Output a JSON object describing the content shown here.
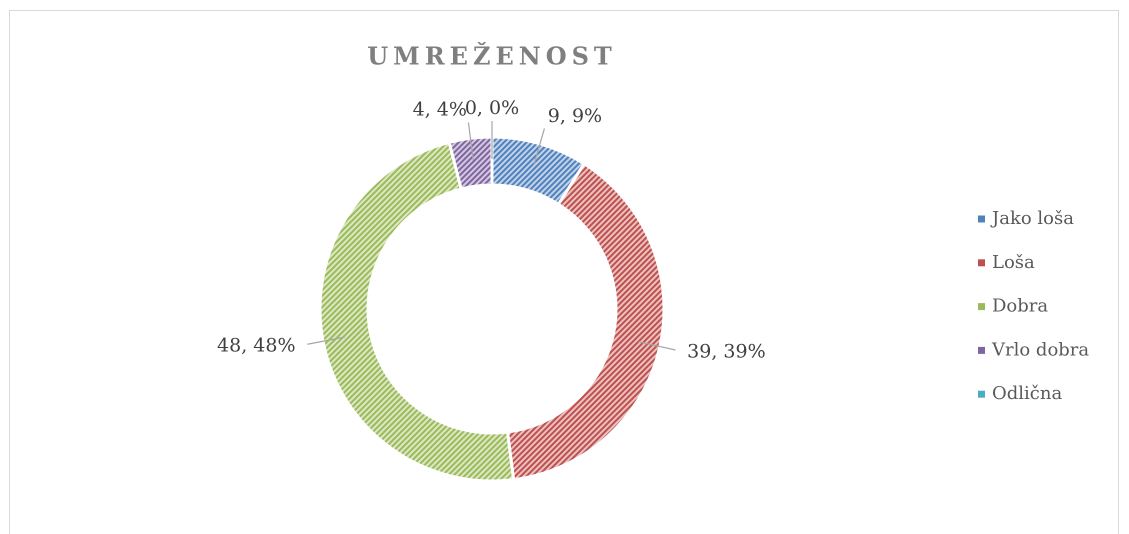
{
  "chart_data": {
    "type": "doughnut",
    "title": "UMREŽENOST",
    "categories": [
      "Jako loša",
      "Loša",
      "Dobra",
      "Vrlo dobra",
      "Odlična"
    ],
    "values": [
      9,
      39,
      48,
      4,
      0
    ],
    "value_labels": [
      "9, 9%",
      "39, 39%",
      "48, 48%",
      "4, 4%",
      "0, 0%"
    ],
    "colors": [
      "#4f81bd",
      "#c0504d",
      "#9bbb59",
      "#8064a2",
      "#4bacc6"
    ],
    "legend": "right"
  }
}
